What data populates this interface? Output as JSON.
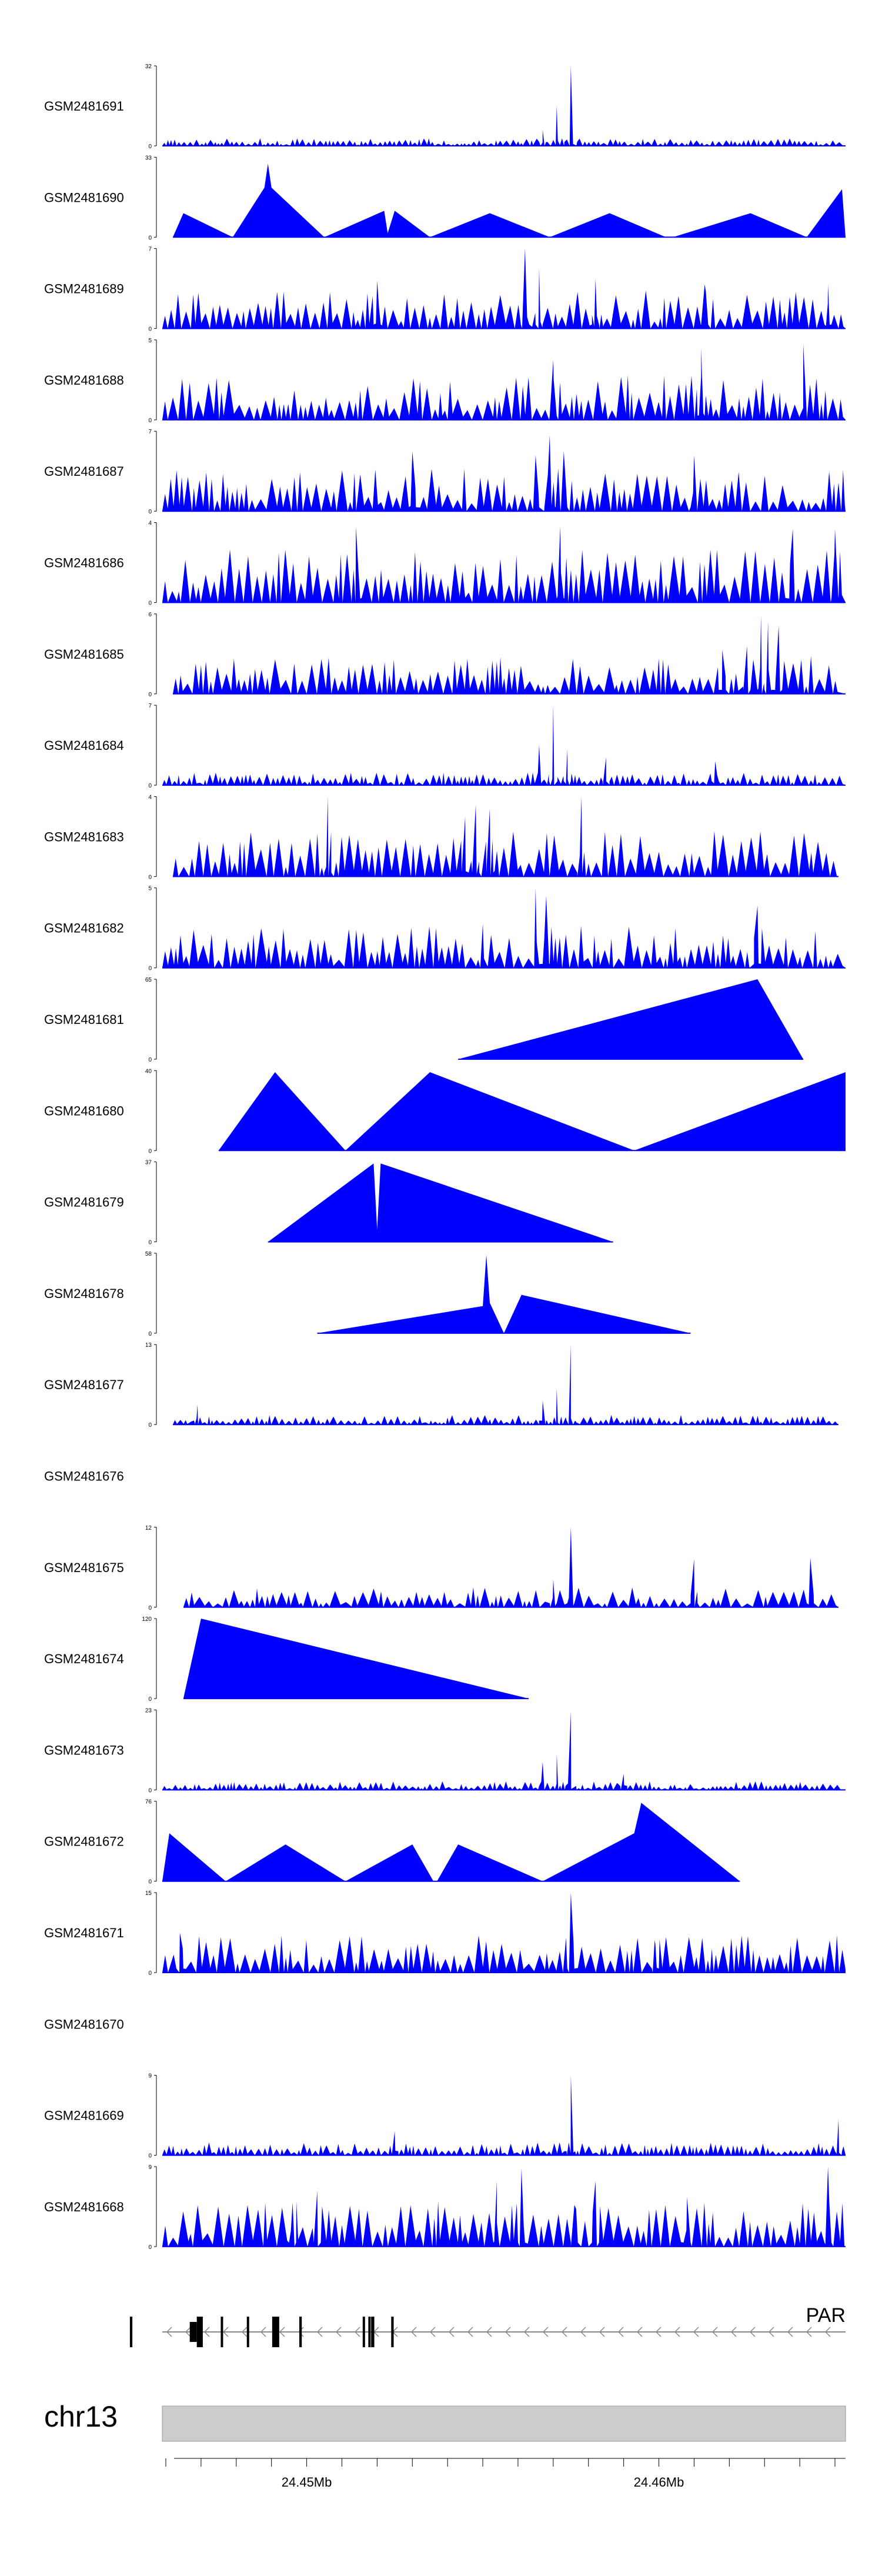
{
  "chromosome": "chr13",
  "gene_label": "PAR",
  "colors": {
    "signal": "#0000ff",
    "ideogram": "#cccccc",
    "gene": "#000000"
  },
  "chart_data": {
    "type": "area",
    "title": "",
    "xlabel": "",
    "ylabel": "",
    "xlim": [
      24.4459,
      24.4653
    ],
    "x_axis_ticks": [
      24.445,
      24.446,
      24.447,
      24.448,
      24.449,
      24.45,
      24.451,
      24.452,
      24.453,
      24.454,
      24.455,
      24.456,
      24.457,
      24.458,
      24.459,
      24.46,
      24.461,
      24.462,
      24.463,
      24.464,
      24.465
    ],
    "x_axis_labels": [
      {
        "value": 24.45,
        "text": "24.45Mb"
      },
      {
        "value": 24.46,
        "text": "24.46Mb"
      }
    ],
    "series": [
      {
        "name": "GSM2481691",
        "ymax": 32,
        "ymax_label": "32",
        "ymin_label": "0",
        "style": "dense",
        "seed": 11,
        "base": 0.07,
        "span": [
          24.4459,
          24.4653
        ],
        "peaks": [
          [
            24.4575,
            1.0,
            0.00018
          ],
          [
            24.4571,
            0.5,
            0.00012
          ],
          [
            24.4567,
            0.2,
            0.0001
          ]
        ]
      },
      {
        "name": "GSM2481690",
        "ymax": 33,
        "ymax_label": "33",
        "ymin_label": "0",
        "style": "points",
        "span": [
          24.4462,
          24.4653
        ],
        "points": [
          [
            24.4462,
            0
          ],
          [
            24.4465,
            0.3
          ],
          [
            24.4479,
            0
          ],
          [
            24.4488,
            0.62
          ],
          [
            24.4489,
            0.92
          ],
          [
            24.449,
            0.62
          ],
          [
            24.4505,
            0
          ],
          [
            24.4522,
            0.33
          ],
          [
            24.4523,
            0.05
          ],
          [
            24.4525,
            0.33
          ],
          [
            24.4535,
            0
          ],
          [
            24.4552,
            0.3
          ],
          [
            24.4569,
            0
          ],
          [
            24.4586,
            0.3
          ],
          [
            24.4602,
            0
          ],
          [
            24.4604,
            0
          ],
          [
            24.4626,
            0.3
          ],
          [
            24.4642,
            0
          ],
          [
            24.4652,
            0.6
          ],
          [
            24.4653,
            0
          ]
        ]
      },
      {
        "name": "GSM2481689",
        "ymax": 7,
        "ymax_label": "7",
        "ymin_label": "0",
        "style": "spiky",
        "seed": 21,
        "base": 0.25,
        "span": [
          24.4459,
          24.4653
        ],
        "peaks": [
          [
            24.4562,
            1.0,
            0.00012
          ],
          [
            24.4566,
            0.75,
            0.0001
          ],
          [
            24.452,
            0.6,
            0.0001
          ],
          [
            24.4582,
            0.62,
            0.0001
          ],
          [
            24.4613,
            0.55,
            0.0001
          ],
          [
            24.4648,
            0.55,
            0.0001
          ]
        ]
      },
      {
        "name": "GSM2481688",
        "ymax": 5,
        "ymax_label": "5",
        "ymin_label": "0",
        "style": "spiky",
        "seed": 33,
        "base": 0.3,
        "span": [
          24.4459,
          24.4653
        ],
        "peaks": [
          [
            24.4612,
            0.92,
            0.0001
          ],
          [
            24.4641,
            0.95,
            0.0001
          ],
          [
            24.457,
            0.75,
            0.0001
          ],
          [
            24.4612,
            0.9,
            0.0001
          ]
        ]
      },
      {
        "name": "GSM2481687",
        "ymax": 7,
        "ymax_label": "7",
        "ymin_label": "0",
        "style": "spiky",
        "seed": 44,
        "base": 0.28,
        "span": [
          24.4459,
          24.4653
        ],
        "peaks": [
          [
            24.4569,
            0.95,
            0.00015
          ],
          [
            24.4573,
            0.75,
            0.0001
          ],
          [
            24.4565,
            0.7,
            0.0001
          ],
          [
            24.453,
            0.75,
            0.0001
          ],
          [
            24.461,
            0.7,
            0.0001
          ]
        ]
      },
      {
        "name": "GSM2481686",
        "ymax": 4,
        "ymax_label": "4",
        "ymin_label": "0",
        "style": "spiky",
        "seed": 55,
        "base": 0.35,
        "span": [
          24.4459,
          24.4653
        ],
        "peaks": [
          [
            24.4514,
            0.95,
            0.00012
          ],
          [
            24.4572,
            0.95,
            0.0001
          ],
          [
            24.4638,
            0.92,
            0.0001
          ],
          [
            24.465,
            0.92,
            0.0001
          ]
        ]
      },
      {
        "name": "GSM2481685",
        "ymax": 6,
        "ymax_label": "6",
        "ymin_label": "0",
        "style": "spiky",
        "seed": 66,
        "base": 0.25,
        "span": [
          24.4462,
          24.4653
        ],
        "peaks": [
          [
            24.4629,
            0.98,
            0.0001
          ],
          [
            24.4631,
            0.9,
            0.0001
          ],
          [
            24.4634,
            0.85,
            0.0001
          ],
          [
            24.4625,
            0.6,
            0.0001
          ],
          [
            24.4618,
            0.55,
            0.0001
          ]
        ]
      },
      {
        "name": "GSM2481684",
        "ymax": 7,
        "ymax_label": "7",
        "ymin_label": "0",
        "style": "dense",
        "seed": 77,
        "base": 0.12,
        "span": [
          24.4459,
          24.4653
        ],
        "peaks": [
          [
            24.457,
            1.0,
            0.00012
          ],
          [
            24.4566,
            0.5,
            0.0001
          ],
          [
            24.4574,
            0.45,
            0.0001
          ],
          [
            24.4585,
            0.35,
            0.0001
          ],
          [
            24.4616,
            0.3,
            0.0001
          ]
        ]
      },
      {
        "name": "GSM2481683",
        "ymax": 4,
        "ymax_label": "4",
        "ymin_label": "0",
        "style": "spiky",
        "seed": 88,
        "base": 0.3,
        "span": [
          24.4462,
          24.4651
        ],
        "peaks": [
          [
            24.4506,
            1.0,
            0.0001
          ],
          [
            24.4548,
            0.9,
            0.0001
          ],
          [
            24.4552,
            0.85,
            0.0001
          ],
          [
            24.4578,
            1.0,
            0.00012
          ],
          [
            24.4545,
            0.75,
            0.0001
          ]
        ]
      },
      {
        "name": "GSM2481682",
        "ymax": 5,
        "ymax_label": "5",
        "ymin_label": "0",
        "style": "spiky",
        "seed": 99,
        "base": 0.28,
        "span": [
          24.4459,
          24.4653
        ],
        "peaks": [
          [
            24.4565,
            1.0,
            0.0001
          ],
          [
            24.4568,
            0.9,
            0.0001
          ],
          [
            24.4628,
            0.78,
            0.0001
          ],
          [
            24.455,
            0.55,
            0.0001
          ]
        ]
      },
      {
        "name": "GSM2481681",
        "ymax": 65,
        "ymax_label": "65",
        "ymin_label": "0",
        "style": "points",
        "span": [
          24.4543,
          24.4641
        ],
        "points": [
          [
            24.4543,
            0
          ],
          [
            24.4628,
            1.0
          ],
          [
            24.4641,
            0
          ]
        ]
      },
      {
        "name": "GSM2481680",
        "ymax": 40,
        "ymax_label": "40",
        "ymin_label": "0",
        "style": "points",
        "span": [
          24.4475,
          24.4653
        ],
        "points": [
          [
            24.4475,
            0
          ],
          [
            24.4491,
            0.98
          ],
          [
            24.4511,
            0
          ],
          [
            24.4535,
            0.98
          ],
          [
            24.4593,
            0
          ],
          [
            24.4653,
            0.98
          ],
          [
            24.4653,
            0
          ]
        ]
      },
      {
        "name": "GSM2481679",
        "ymax": 37,
        "ymax_label": "37",
        "ymin_label": "0",
        "style": "points",
        "span": [
          24.4489,
          24.4587
        ],
        "points": [
          [
            24.4489,
            0
          ],
          [
            24.4519,
            0.98
          ],
          [
            24.452,
            0.15
          ],
          [
            24.4521,
            0.98
          ],
          [
            24.4587,
            0
          ]
        ]
      },
      {
        "name": "GSM2481678",
        "ymax": 58,
        "ymax_label": "58",
        "ymin_label": "0",
        "style": "points",
        "span": [
          24.4503,
          24.4609
        ],
        "points": [
          [
            24.4503,
            0
          ],
          [
            24.455,
            0.34
          ],
          [
            24.4551,
            0.98
          ],
          [
            24.4552,
            0.38
          ],
          [
            24.4556,
            0
          ],
          [
            24.4561,
            0.48
          ],
          [
            24.4609,
            0
          ]
        ]
      },
      {
        "name": "GSM2481677",
        "ymax": 13,
        "ymax_label": "13",
        "ymin_label": "0",
        "style": "dense",
        "seed": 111,
        "base": 0.09,
        "span": [
          24.4462,
          24.4651
        ],
        "peaks": [
          [
            24.4575,
            1.0,
            0.00012
          ],
          [
            24.4571,
            0.45,
            0.0001
          ],
          [
            24.4567,
            0.3,
            0.0001
          ],
          [
            24.4469,
            0.25,
            0.0001
          ]
        ]
      },
      {
        "name": "GSM2481676",
        "style": "empty"
      },
      {
        "name": "GSM2481675",
        "ymax": 12,
        "ymax_label": "12",
        "ymin_label": "0",
        "style": "spiky",
        "seed": 122,
        "base": 0.13,
        "span": [
          24.4465,
          24.4651
        ],
        "peaks": [
          [
            24.4575,
            1.0,
            0.0001
          ],
          [
            24.461,
            0.6,
            0.0001
          ],
          [
            24.4643,
            0.62,
            0.0001
          ],
          [
            24.457,
            0.35,
            0.0001
          ]
        ]
      },
      {
        "name": "GSM2481674",
        "ymax": 120,
        "ymax_label": "120",
        "ymin_label": "0",
        "style": "points",
        "span": [
          24.4465,
          24.4563
        ],
        "points": [
          [
            24.4465,
            0
          ],
          [
            24.447,
            1.0
          ],
          [
            24.4563,
            0
          ]
        ]
      },
      {
        "name": "GSM2481673",
        "ymax": 23,
        "ymax_label": "23",
        "ymin_label": "0",
        "style": "dense",
        "seed": 133,
        "base": 0.08,
        "span": [
          24.4459,
          24.4653
        ],
        "peaks": [
          [
            24.4575,
            0.98,
            0.00015
          ],
          [
            24.4571,
            0.45,
            0.0001
          ],
          [
            24.4567,
            0.35,
            0.0001
          ],
          [
            24.459,
            0.2,
            0.0001
          ]
        ]
      },
      {
        "name": "GSM2481672",
        "ymax": 76,
        "ymax_label": "76",
        "ymin_label": "0",
        "style": "points",
        "span": [
          24.4459,
          24.4623
        ],
        "points": [
          [
            24.4459,
            0
          ],
          [
            24.4461,
            0.6
          ],
          [
            24.4477,
            0
          ],
          [
            24.4494,
            0.46
          ],
          [
            24.4511,
            0
          ],
          [
            24.453,
            0.46
          ],
          [
            24.4536,
            0
          ],
          [
            24.4537,
            0
          ],
          [
            24.4543,
            0.46
          ],
          [
            24.4567,
            0
          ],
          [
            24.4593,
            0.6
          ],
          [
            24.4595,
            0.98
          ],
          [
            24.4623,
            0
          ]
        ]
      },
      {
        "name": "GSM2481671",
        "ymax": 15,
        "ymax_label": "15",
        "ymin_label": "0",
        "style": "spiky",
        "seed": 144,
        "base": 0.25,
        "span": [
          24.4459,
          24.4653
        ],
        "peaks": [
          [
            24.4575,
            1.0,
            0.0001
          ],
          [
            24.4464,
            0.5,
            0.0001
          ],
          [
            24.4599,
            0.35,
            0.0001
          ]
        ]
      },
      {
        "name": "GSM2481670",
        "style": "empty"
      },
      {
        "name": "GSM2481669",
        "ymax": 9,
        "ymax_label": "9",
        "ymin_label": "0",
        "style": "dense",
        "seed": 155,
        "base": 0.12,
        "span": [
          24.4459,
          24.4653
        ],
        "peaks": [
          [
            24.4575,
            1.0,
            0.00012
          ],
          [
            24.4651,
            0.45,
            0.0001
          ],
          [
            24.4525,
            0.3,
            0.0001
          ]
        ]
      },
      {
        "name": "GSM2481668",
        "ymax": 9,
        "ymax_label": "9",
        "ymin_label": "0",
        "style": "spiky",
        "seed": 166,
        "base": 0.3,
        "span": [
          24.4459,
          24.4653
        ],
        "peaks": [
          [
            24.4582,
            0.82,
            0.0001
          ],
          [
            24.4554,
            0.82,
            0.0001
          ],
          [
            24.4561,
            0.98,
            0.0001
          ],
          [
            24.4648,
            1.0,
            0.0001
          ],
          [
            24.4608,
            0.62,
            0.0001
          ],
          [
            24.4503,
            0.7,
            0.0001
          ],
          [
            24.4496,
            0.55,
            0.0001
          ],
          [
            24.4576,
            0.52,
            0.0001
          ]
        ]
      }
    ],
    "gene_model": {
      "span": [
        24.4459,
        24.4653
      ],
      "strand": "-",
      "exons": [
        {
          "start": 24.44498,
          "end": 24.44505,
          "type": "coding"
        },
        {
          "start": 24.44668,
          "end": 24.44688,
          "type": "utr"
        },
        {
          "start": 24.44688,
          "end": 24.44705,
          "type": "coding"
        },
        {
          "start": 24.44756,
          "end": 24.44762,
          "type": "coding"
        },
        {
          "start": 24.4483,
          "end": 24.44835,
          "type": "coding"
        },
        {
          "start": 24.44902,
          "end": 24.44922,
          "type": "coding"
        },
        {
          "start": 24.44979,
          "end": 24.44986,
          "type": "coding"
        },
        {
          "start": 24.45159,
          "end": 24.45163,
          "type": "coding"
        },
        {
          "start": 24.45175,
          "end": 24.4518,
          "type": "coding"
        },
        {
          "start": 24.45183,
          "end": 24.45192,
          "type": "coding"
        },
        {
          "start": 24.4524,
          "end": 24.45247,
          "type": "coding"
        }
      ]
    }
  }
}
